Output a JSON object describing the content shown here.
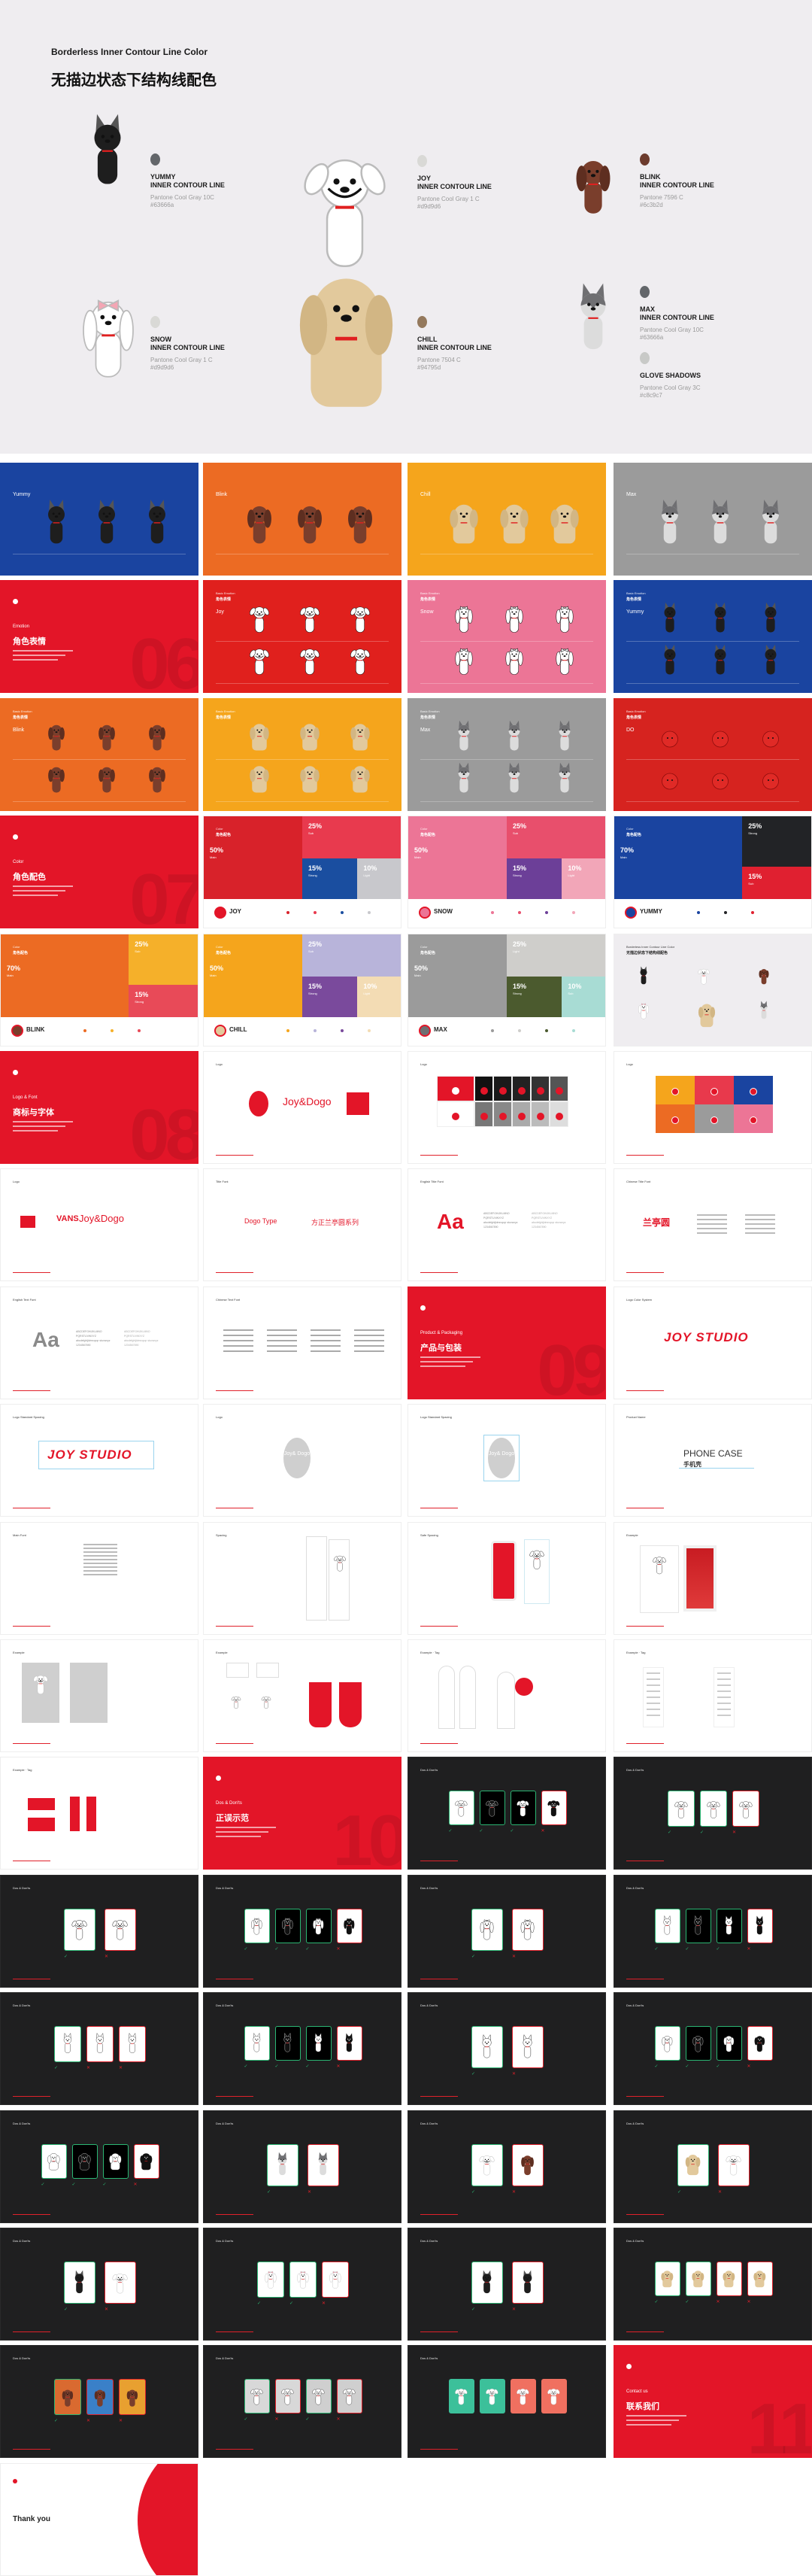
{
  "hero": {
    "title": "Borderless Inner Contour Line Color",
    "subtitle": "无描边状态下结构线配色",
    "characters": [
      {
        "kind": "yummy",
        "name": "YUMMY",
        "line": "INNER CONTOUR LINE",
        "pantone": "Pantone Cool Gray 10C",
        "hex": "#63666a",
        "dot": "#63666a"
      },
      {
        "kind": "joy",
        "name": "JOY",
        "line": "INNER CONTOUR LINE",
        "pantone": "Pantone Cool Gray 1 C",
        "hex": "#d9d9d6",
        "dot": "#d9d9d6"
      },
      {
        "kind": "blink",
        "name": "BLINK",
        "line": "INNER CONTOUR LINE",
        "pantone": "Pantone 7596 C",
        "hex": "#6c3b2d",
        "dot": "#6c3b2d"
      },
      {
        "kind": "snow",
        "name": "SNOW",
        "line": "INNER CONTOUR LINE",
        "pantone": "Pantone Cool Gray 1 C",
        "hex": "#d9d9d6",
        "dot": "#d9d9d6"
      },
      {
        "kind": "chill",
        "name": "CHILL",
        "line": "INNER CONTOUR LINE",
        "pantone": "Pantone 7504 C",
        "hex": "#94795d",
        "dot": "#94795d"
      },
      {
        "kind": "max",
        "name": "MAX",
        "line": "INNER CONTOUR LINE",
        "pantone": "Pantone Cool Gray 10C",
        "hex": "#63666a",
        "dot": "#63666a"
      }
    ],
    "glove": {
      "name": "GLOVE SHADOWS",
      "pantone": "Pantone Cool Gray 3C",
      "hex": "#c8c9c7",
      "dot": "#c8c9c7"
    }
  },
  "colors": {
    "red": "#e31528",
    "correct": "#2bb673",
    "wrong": "#e0202a",
    "dark": "#1f1f20"
  },
  "slides": [
    {
      "t": "char",
      "bg": "#1a44a0",
      "name": "Yummy",
      "kind": "yummy",
      "rows": 1
    },
    {
      "t": "char",
      "bg": "#ec6b23",
      "name": "Blink",
      "kind": "blink",
      "rows": 1
    },
    {
      "t": "char",
      "bg": "#f5a51c",
      "name": "Chill",
      "kind": "chill",
      "rows": 1
    },
    {
      "t": "char",
      "bg": "#9b9b9b",
      "name": "Max",
      "kind": "max",
      "rows": 1
    },
    {
      "t": "divider",
      "label": "Emotion",
      "title": "角色表情",
      "num": "06"
    },
    {
      "t": "char",
      "bg": "#e0201d",
      "eyebrow": "Basic Emotion",
      "eyebrow2": "角色表情",
      "name": "Joy",
      "kind": "joy",
      "rows": 2
    },
    {
      "t": "char",
      "bg": "#ec7596",
      "eyebrow": "Basic Emotion",
      "eyebrow2": "角色表情",
      "name": "Snow",
      "kind": "snow",
      "rows": 2
    },
    {
      "t": "char",
      "bg": "#1a44a0",
      "eyebrow": "Basic Emotion",
      "eyebrow2": "角色表情",
      "name": "Yummy",
      "kind": "yummy",
      "rows": 2
    },
    {
      "t": "char",
      "bg": "#ec6b23",
      "eyebrow": "Basic Emotion",
      "eyebrow2": "角色表情",
      "name": "Blink",
      "kind": "blink",
      "rows": 2
    },
    {
      "t": "char",
      "bg": "#f5a51c",
      "eyebrow": "Basic Emotion",
      "eyebrow2": "角色表情",
      "name": "",
      "kind": "chill",
      "rows": 2
    },
    {
      "t": "char",
      "bg": "#9b9b9b",
      "eyebrow": "Basic Emotion",
      "eyebrow2": "角色表情",
      "name": "Max",
      "kind": "max",
      "rows": 2
    },
    {
      "t": "char",
      "bg": "#d6231f",
      "eyebrow": "Basic Emotion",
      "eyebrow2": "角色表情",
      "name": "DO",
      "kind": "do",
      "rows": 2
    },
    {
      "t": "divider",
      "label": "Color",
      "title": "角色配色",
      "num": "07"
    },
    {
      "t": "color",
      "layout": "4",
      "eyebrow": "Color",
      "eyebrow2": "角色配色",
      "name": "JOY",
      "icon": "#e31528",
      "blocks": [
        {
          "pct": "50%",
          "label": "Main",
          "color": "#d8222a"
        },
        {
          "pct": "25%",
          "label": "Sub",
          "color": "#e83a4e"
        },
        {
          "pct": "15%",
          "label": "Strong",
          "color": "#1a4ea0"
        },
        {
          "pct": "10%",
          "label": "Light",
          "color": "#c8c8cc"
        }
      ]
    },
    {
      "t": "color",
      "layout": "4",
      "eyebrow": "Color",
      "eyebrow2": "角色配色",
      "name": "SNOW",
      "icon": "#ec7596",
      "blocks": [
        {
          "pct": "50%",
          "label": "Main",
          "color": "#ec7596"
        },
        {
          "pct": "25%",
          "label": "Sub",
          "color": "#e84f6c"
        },
        {
          "pct": "15%",
          "label": "Strong",
          "color": "#6c3f98"
        },
        {
          "pct": "10%",
          "label": "Light",
          "color": "#f2a6b8"
        }
      ]
    },
    {
      "t": "color",
      "layout": "3",
      "eyebrow": "Color",
      "eyebrow2": "角色配色",
      "name": "YUMMY",
      "icon": "#1a44a0",
      "blocks": [
        {
          "pct": "70%",
          "label": "Main",
          "color": "#1a44a0"
        },
        {
          "pct": "25%",
          "label": "Strong",
          "color": "#222326"
        },
        {
          "pct": "15%",
          "label": "Sub",
          "color": "#e02030"
        }
      ]
    },
    {
      "t": "color",
      "layout": "3",
      "eyebrow": "Color",
      "eyebrow2": "角色配色",
      "name": "BLINK",
      "icon": "#7a3e2c",
      "blocks": [
        {
          "pct": "70%",
          "label": "Main",
          "color": "#ec6b23"
        },
        {
          "pct": "25%",
          "label": "Sub",
          "color": "#f5b02a"
        },
        {
          "pct": "15%",
          "label": "Strong",
          "color": "#e84a58"
        }
      ]
    },
    {
      "t": "color",
      "layout": "4",
      "eyebrow": "Color",
      "eyebrow2": "角色配色",
      "name": "CHILL",
      "icon": "#e2c99c",
      "blocks": [
        {
          "pct": "50%",
          "label": "Main",
          "color": "#f5a51c"
        },
        {
          "pct": "25%",
          "label": "Sub",
          "color": "#b8b4da"
        },
        {
          "pct": "15%",
          "label": "Strong",
          "color": "#7a4a9c"
        },
        {
          "pct": "10%",
          "label": "Light",
          "color": "#f3dcb4"
        }
      ]
    },
    {
      "t": "color",
      "layout": "4",
      "eyebrow": "Color",
      "eyebrow2": "角色配色",
      "name": "MAX",
      "icon": "#6f6f72",
      "blocks": [
        {
          "pct": "50%",
          "label": "Main",
          "color": "#9b9b9b"
        },
        {
          "pct": "25%",
          "label": "Light",
          "color": "#cfcecb"
        },
        {
          "pct": "15%",
          "label": "Strong",
          "color": "#4b5a2e"
        },
        {
          "pct": "10%",
          "label": "Sub",
          "color": "#a8dcd4"
        }
      ]
    },
    {
      "t": "mini",
      "eyebrow": "Borderless Inner Contour Line Color",
      "eyebrow2": "无描边状态下结构线配色"
    },
    {
      "t": "divider",
      "label": "Logo & Font",
      "title": "商标与字体",
      "num": "08"
    },
    {
      "t": "white",
      "v": "logo",
      "eyebrow": "Logo",
      "text": "Joy&Dogo",
      "badge": "Joy& Dogo"
    },
    {
      "t": "white",
      "v": "logogrid",
      "eyebrow": "Logo"
    },
    {
      "t": "white",
      "v": "logocolors",
      "eyebrow": "Logo",
      "swatches": [
        "#f5a51c",
        "#e8394c",
        "#1a44a0",
        "#ec6b23",
        "#9b9b9b",
        "#ec7596"
      ]
    },
    {
      "t": "white",
      "v": "vans",
      "eyebrow": "Logo",
      "text": "Joy&Dogo",
      "text2": "VANS"
    },
    {
      "t": "white",
      "v": "type",
      "eyebrow": "Title Font",
      "text": "Dogo Type",
      "text2": "方正兰亭圆系列"
    },
    {
      "t": "white",
      "v": "aa",
      "eyebrow": "English Title Font",
      "text": "Aa",
      "color": "#e31528",
      "alpha": "ABCDEFGHIJKLMNO PQRSTUVWXYZ abcdefghijklmnopqr stuvwxyz 1234567890"
    },
    {
      "t": "white",
      "v": "cjk",
      "eyebrow": "Chinese Title Font",
      "text": "兰亭圆"
    },
    {
      "t": "white",
      "v": "aa",
      "eyebrow": "English Text Font",
      "text": "Aa",
      "color": "#8a8a8a",
      "alpha": "ABCDEFGHIJKLMNO PQRSTUVWXYZ abcdefghijklmnopqr stuvwxyz 1234567890"
    },
    {
      "t": "white",
      "v": "textcols",
      "eyebrow": "Chinese Text Font"
    },
    {
      "t": "divider",
      "label": "Product & Packaging",
      "title": "产品与包装",
      "num": "09"
    },
    {
      "t": "white",
      "v": "studio",
      "eyebrow": "Logo Color System",
      "text": "JOY STUDIO"
    },
    {
      "t": "white",
      "v": "studioguide",
      "eyebrow": "Logo Standard Spacing",
      "text": "JOY STUDIO"
    },
    {
      "t": "white",
      "v": "circle",
      "eyebrow": "Logo",
      "text": "Joy& Dogo"
    },
    {
      "t": "white",
      "v": "circleguide",
      "eyebrow": "Logo Standard Spacing",
      "text": "Joy& Dogo"
    },
    {
      "t": "white",
      "v": "phonecase",
      "eyebrow": "Product Name",
      "text": "PHONE CASE",
      "text2": "手机壳"
    },
    {
      "t": "white",
      "v": "speclist",
      "eyebrow": "Main Font"
    },
    {
      "t": "white",
      "v": "tagspec",
      "eyebrow": "Spacing"
    },
    {
      "t": "white",
      "v": "phonered",
      "eyebrow": "Safe Spacing"
    },
    {
      "t": "white",
      "v": "box",
      "eyebrow": "Example"
    },
    {
      "t": "white",
      "v": "coaster",
      "eyebrow": "Example"
    },
    {
      "t": "white",
      "v": "hangtags",
      "eyebrow": "Example"
    },
    {
      "t": "white",
      "v": "roundtags",
      "eyebrow": "Example · Tag"
    },
    {
      "t": "white",
      "v": "labelspec",
      "eyebrow": "Example · Tag"
    },
    {
      "t": "white",
      "v": "redlabels",
      "eyebrow": "Example · Tag"
    },
    {
      "t": "divider",
      "label": "Dos & Don'ts",
      "title": "正误示范",
      "num": "10"
    },
    {
      "t": "dark",
      "eyebrow": "Dos & Don'ts",
      "cards": "gGGr",
      "kinds": [
        "joy"
      ]
    },
    {
      "t": "dark",
      "eyebrow": "Dos & Don'ts",
      "cards": "ggr",
      "kinds": [
        "joy"
      ]
    },
    {
      "t": "dark",
      "eyebrow": "Dos & Don'ts",
      "cards": "gr",
      "kinds": [
        "joy"
      ]
    },
    {
      "t": "dark",
      "eyebrow": "Dos & Don'ts",
      "cards": "gGGr",
      "kinds": [
        "snow"
      ]
    },
    {
      "t": "dark",
      "eyebrow": "Dos & Don'ts",
      "cards": "gr",
      "kinds": [
        "snow"
      ]
    },
    {
      "t": "dark",
      "eyebrow": "Dos & Don'ts",
      "cards": "gGGr",
      "kinds": [
        "max"
      ]
    },
    {
      "t": "dark",
      "eyebrow": "Dos & Don'ts",
      "cards": "grr",
      "kinds": [
        "max"
      ]
    },
    {
      "t": "dark",
      "eyebrow": "Dos & Don'ts",
      "cards": "gGGr",
      "kinds": [
        "yummy"
      ]
    },
    {
      "t": "dark",
      "eyebrow": "Dos & Don'ts",
      "cards": "gr",
      "kinds": [
        "yummy"
      ]
    },
    {
      "t": "dark",
      "eyebrow": "Dos & Don'ts",
      "cards": "gGGr",
      "kinds": [
        "blink"
      ]
    },
    {
      "t": "dark",
      "eyebrow": "Dos & Don'ts",
      "cards": "gGGr",
      "kinds": [
        "chill"
      ]
    },
    {
      "t": "dark",
      "eyebrow": "Dos & Don'ts",
      "cards": "gr",
      "kinds": [
        "max"
      ],
      "fill": true
    },
    {
      "t": "dark",
      "eyebrow": "Dos & Don'ts",
      "cards": "gr",
      "kinds": [
        "joy",
        "blink"
      ],
      "fill": true
    },
    {
      "t": "dark",
      "eyebrow": "Dos & Don'ts",
      "cards": "gr",
      "kinds": [
        "chill",
        "joy"
      ],
      "fill": true
    },
    {
      "t": "dark",
      "eyebrow": "Dos & Don'ts",
      "cards": "gr",
      "kinds": [
        "yummy",
        "joy"
      ],
      "fill": true
    },
    {
      "t": "dark",
      "eyebrow": "Dos & Don'ts",
      "cards": "ggr",
      "kinds": [
        "snow"
      ],
      "fill": true
    },
    {
      "t": "dark",
      "eyebrow": "Dos & Don'ts",
      "cards": "gr",
      "kinds": [
        "yummy"
      ],
      "fill": true
    },
    {
      "t": "dark",
      "eyebrow": "Dos & Don'ts",
      "cards": "ggrr",
      "kinds": [
        "chill"
      ],
      "fill": true
    },
    {
      "t": "dark",
      "eyebrow": "Dos & Don'ts",
      "cards": "grr",
      "kinds": [
        "blink"
      ],
      "fill": true,
      "cardbg": [
        "#d96a30",
        "#3a80c8",
        "#e8a030"
      ]
    },
    {
      "t": "dark",
      "eyebrow": "Dos & Don'ts",
      "cards": "grgr",
      "kinds": [
        "joy"
      ],
      "cardbg": [
        "#d8d8d8",
        "#d8d8d8",
        "#cfcfcf",
        "#cfcfcf"
      ]
    },
    {
      "t": "dark",
      "eyebrow": "Dos & Don'ts",
      "cards": "nnnn",
      "kinds": [
        "joy"
      ],
      "fill": true,
      "cardbg": [
        "#3cc09a",
        "#3cc09a",
        "#f07060",
        "#f07060"
      ]
    },
    {
      "t": "divider",
      "label": "Contact us",
      "title": "联系我们",
      "num": "11"
    },
    {
      "t": "thanks",
      "text": "Thank you"
    }
  ]
}
